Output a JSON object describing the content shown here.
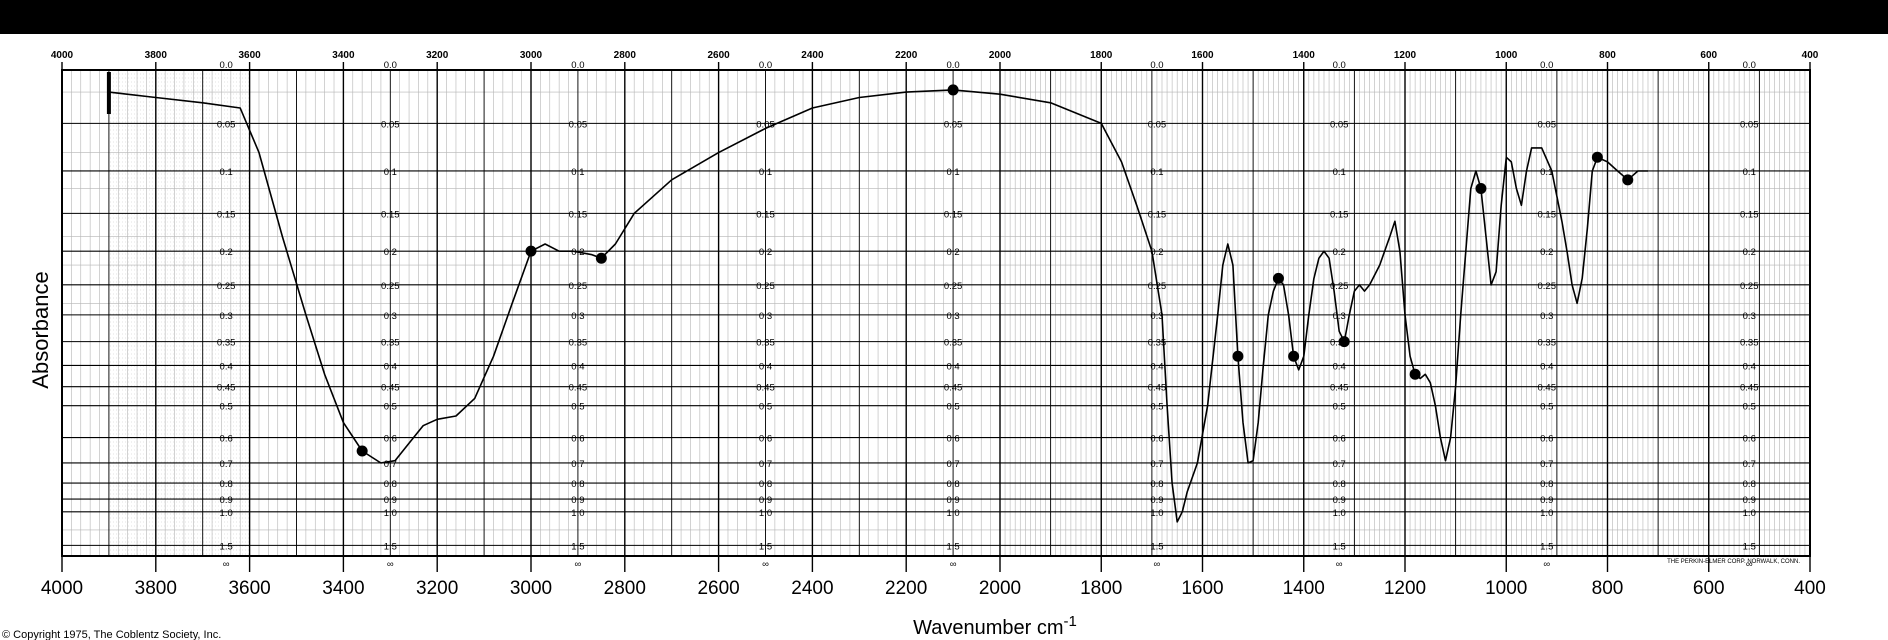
{
  "chart_data": {
    "type": "line",
    "title": "",
    "xlabel": "Wavenumber cm",
    "xlabel_superscript": "-1",
    "ylabel": "Absorbance",
    "xlim": [
      4000,
      400
    ],
    "ylim": [
      0.0,
      1.5
    ],
    "x_ticks_bottom": [
      "4000",
      "3800",
      "3600",
      "3400",
      "3200",
      "3000",
      "2800",
      "2600",
      "2400",
      "2200",
      "2000",
      "1800",
      "1600",
      "1400",
      "1200",
      "1000",
      "800",
      "600",
      "400"
    ],
    "x_ticks_top": [
      "4000",
      "3800",
      "3600",
      "3400",
      "3200",
      "3000",
      "2800",
      "2600",
      "2400",
      "2200",
      "2000",
      "1800",
      "1600",
      "1400",
      "1200",
      "1000",
      "800",
      "600",
      "400"
    ],
    "absorbance_scale_labels": [
      "0.0",
      "0.05",
      "0.1",
      "0.15",
      "0.2",
      "0.25",
      "0.3",
      "0.35",
      "0.4",
      "0.45",
      "0.5",
      "0.6",
      "0.7",
      "0.8",
      "0.9",
      "1.0",
      "1.5",
      "∞"
    ],
    "label_column_x": [
      3650,
      3300,
      2900,
      2500,
      2100,
      1690,
      1330,
      920,
      520
    ],
    "grid": true,
    "legend": "none",
    "line_color": "#000000",
    "series": [
      {
        "points": [
          [
            3900,
            0.02
          ],
          [
            3800,
            0.025
          ],
          [
            3700,
            0.03
          ],
          [
            3620,
            0.035
          ],
          [
            3580,
            0.08
          ],
          [
            3530,
            0.18
          ],
          [
            3480,
            0.3
          ],
          [
            3440,
            0.42
          ],
          [
            3400,
            0.55
          ],
          [
            3360,
            0.65
          ],
          [
            3320,
            0.7
          ],
          [
            3290,
            0.69
          ],
          [
            3260,
            0.62
          ],
          [
            3230,
            0.56
          ],
          [
            3200,
            0.54
          ],
          [
            3160,
            0.53
          ],
          [
            3120,
            0.48
          ],
          [
            3080,
            0.38
          ],
          [
            3040,
            0.28
          ],
          [
            3000,
            0.2
          ],
          [
            2970,
            0.19
          ],
          [
            2940,
            0.2
          ],
          [
            2910,
            0.2
          ],
          [
            2870,
            0.205
          ],
          [
            2850,
            0.21
          ],
          [
            2820,
            0.19
          ],
          [
            2780,
            0.15
          ],
          [
            2700,
            0.11
          ],
          [
            2600,
            0.08
          ],
          [
            2500,
            0.055
          ],
          [
            2400,
            0.035
          ],
          [
            2300,
            0.025
          ],
          [
            2200,
            0.02
          ],
          [
            2100,
            0.018
          ],
          [
            2000,
            0.022
          ],
          [
            1900,
            0.03
          ],
          [
            1800,
            0.05
          ],
          [
            1760,
            0.09
          ],
          [
            1730,
            0.14
          ],
          [
            1700,
            0.2
          ],
          [
            1680,
            0.3
          ],
          [
            1670,
            0.5
          ],
          [
            1660,
            0.8
          ],
          [
            1650,
            1.1
          ],
          [
            1640,
            1.0
          ],
          [
            1630,
            0.85
          ],
          [
            1610,
            0.7
          ],
          [
            1590,
            0.5
          ],
          [
            1570,
            0.3
          ],
          [
            1560,
            0.22
          ],
          [
            1550,
            0.19
          ],
          [
            1540,
            0.22
          ],
          [
            1530,
            0.38
          ],
          [
            1520,
            0.55
          ],
          [
            1510,
            0.7
          ],
          [
            1500,
            0.69
          ],
          [
            1490,
            0.55
          ],
          [
            1480,
            0.4
          ],
          [
            1470,
            0.3
          ],
          [
            1460,
            0.26
          ],
          [
            1450,
            0.24
          ],
          [
            1440,
            0.25
          ],
          [
            1430,
            0.3
          ],
          [
            1420,
            0.38
          ],
          [
            1410,
            0.41
          ],
          [
            1400,
            0.38
          ],
          [
            1390,
            0.3
          ],
          [
            1380,
            0.24
          ],
          [
            1370,
            0.21
          ],
          [
            1360,
            0.2
          ],
          [
            1350,
            0.21
          ],
          [
            1340,
            0.26
          ],
          [
            1330,
            0.33
          ],
          [
            1320,
            0.35
          ],
          [
            1310,
            0.3
          ],
          [
            1300,
            0.26
          ],
          [
            1290,
            0.25
          ],
          [
            1280,
            0.26
          ],
          [
            1270,
            0.25
          ],
          [
            1250,
            0.22
          ],
          [
            1230,
            0.18
          ],
          [
            1220,
            0.16
          ],
          [
            1210,
            0.2
          ],
          [
            1200,
            0.3
          ],
          [
            1190,
            0.38
          ],
          [
            1180,
            0.42
          ],
          [
            1170,
            0.43
          ],
          [
            1160,
            0.42
          ],
          [
            1150,
            0.44
          ],
          [
            1140,
            0.5
          ],
          [
            1130,
            0.6
          ],
          [
            1120,
            0.69
          ],
          [
            1110,
            0.6
          ],
          [
            1100,
            0.45
          ],
          [
            1090,
            0.3
          ],
          [
            1080,
            0.2
          ],
          [
            1070,
            0.12
          ],
          [
            1060,
            0.1
          ],
          [
            1050,
            0.12
          ],
          [
            1040,
            0.18
          ],
          [
            1030,
            0.25
          ],
          [
            1020,
            0.23
          ],
          [
            1010,
            0.14
          ],
          [
            1000,
            0.085
          ],
          [
            990,
            0.09
          ],
          [
            980,
            0.12
          ],
          [
            970,
            0.14
          ],
          [
            960,
            0.1
          ],
          [
            950,
            0.075
          ],
          [
            930,
            0.075
          ],
          [
            910,
            0.1
          ],
          [
            890,
            0.16
          ],
          [
            880,
            0.2
          ],
          [
            870,
            0.25
          ],
          [
            860,
            0.28
          ],
          [
            850,
            0.24
          ],
          [
            840,
            0.17
          ],
          [
            830,
            0.1
          ],
          [
            820,
            0.085
          ],
          [
            800,
            0.09
          ],
          [
            780,
            0.1
          ],
          [
            760,
            0.11
          ],
          [
            740,
            0.1
          ],
          [
            720,
            0.1
          ]
        ]
      }
    ]
  },
  "notes": {
    "manufacturer": "THE PERKIN-ELMER CORP. NORWALK, CONN.",
    "copyright": "© Copyright 1975, The Coblentz Society, Inc."
  },
  "styles": {
    "background": "#ffffff",
    "ink": "#000000",
    "grid_minor": "#b5b5b5",
    "grid_major": "#000000",
    "top_bar": "#000000"
  }
}
